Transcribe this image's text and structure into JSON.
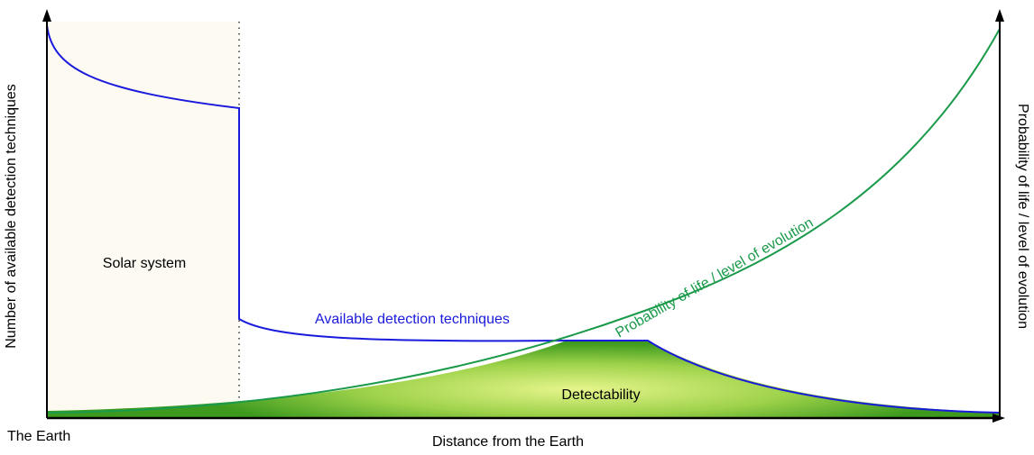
{
  "labels": {
    "solar_system": "Solar system",
    "available_detection": "Available detection techniques",
    "probability_curve": "Probability of life / level of evolution",
    "detectability": "Detectability",
    "left_axis": "Number of available detection techniques",
    "right_axis": "Probability of life / level of evolution",
    "x_axis": "Distance from the Earth",
    "origin": "The Earth"
  },
  "colors": {
    "detection_curve": "#1a1adc",
    "probability_curve": "#1a9a4a",
    "detectability_fill_center": "#e6f58c",
    "detectability_fill_edge": "#3d9a1e",
    "solar_region_fill": "#fdfaf1",
    "axis": "#000000"
  }
}
